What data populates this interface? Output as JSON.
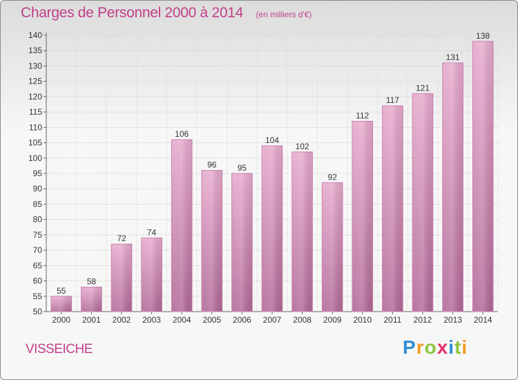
{
  "header": {
    "title": "Charges de Personnel 2000 à 2014",
    "unit": "(en milliers d'€)"
  },
  "footer": {
    "place": "VISSEICHE",
    "logo_letters": [
      {
        "ch": "P",
        "color": "#2f8fd6"
      },
      {
        "ch": "r",
        "color": "#f29a1e"
      },
      {
        "ch": "o",
        "color": "#8cc63f"
      },
      {
        "ch": "x",
        "color": "#e6336b"
      },
      {
        "ch": "i",
        "color": "#2f8fd6"
      },
      {
        "ch": "t",
        "color": "#8cc63f"
      },
      {
        "ch": "i",
        "color": "#f29a1e"
      }
    ]
  },
  "chart_data": {
    "type": "bar",
    "title": "Charges de Personnel 2000 à 2014",
    "subtitle": "(en milliers d'€)",
    "xlabel": "",
    "ylabel": "",
    "categories": [
      "2000",
      "2001",
      "2002",
      "2003",
      "2004",
      "2005",
      "2006",
      "2007",
      "2008",
      "2009",
      "2010",
      "2011",
      "2012",
      "2013",
      "2014"
    ],
    "values": [
      55,
      58,
      72,
      74,
      106,
      96,
      95,
      104,
      102,
      92,
      112,
      117,
      121,
      131,
      138
    ],
    "ylim": [
      50,
      140
    ],
    "yticks": [
      50,
      55,
      60,
      65,
      70,
      75,
      80,
      85,
      90,
      95,
      100,
      105,
      110,
      115,
      120,
      125,
      130,
      135,
      140
    ],
    "grid": true,
    "legend": "none",
    "bar_color": "#d98cb8"
  }
}
